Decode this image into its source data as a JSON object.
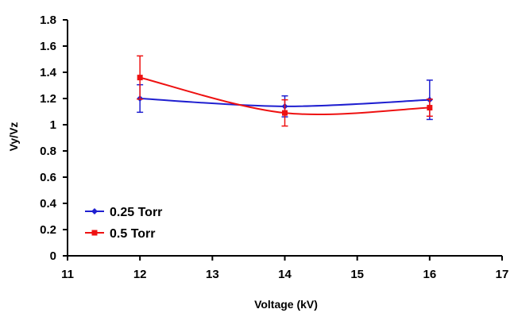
{
  "chart_data": {
    "type": "line",
    "xlabel": "Voltage (kV)",
    "ylabel": "Vy/Vz",
    "xlim": [
      11,
      17
    ],
    "ylim": [
      0,
      1.8
    ],
    "xticks": [
      11,
      12,
      13,
      14,
      15,
      16,
      17
    ],
    "yticks": [
      0,
      0.2,
      0.4,
      0.6,
      0.8,
      1,
      1.2,
      1.4,
      1.6,
      1.8
    ],
    "grid": false,
    "legend_position": "bottom-left",
    "smoothed": true,
    "series": [
      {
        "name": "0.25 Torr",
        "color": "#1f1fd0",
        "marker": "diamond",
        "x": [
          12,
          14,
          16
        ],
        "y": [
          1.2,
          1.14,
          1.19
        ],
        "error": [
          0.105,
          0.08,
          0.15
        ]
      },
      {
        "name": "0.5 Torr",
        "color": "#ee1111",
        "marker": "square",
        "x": [
          12,
          14,
          16
        ],
        "y": [
          1.36,
          1.09,
          1.13
        ],
        "error": [
          0.165,
          0.1,
          0.065
        ]
      }
    ]
  }
}
